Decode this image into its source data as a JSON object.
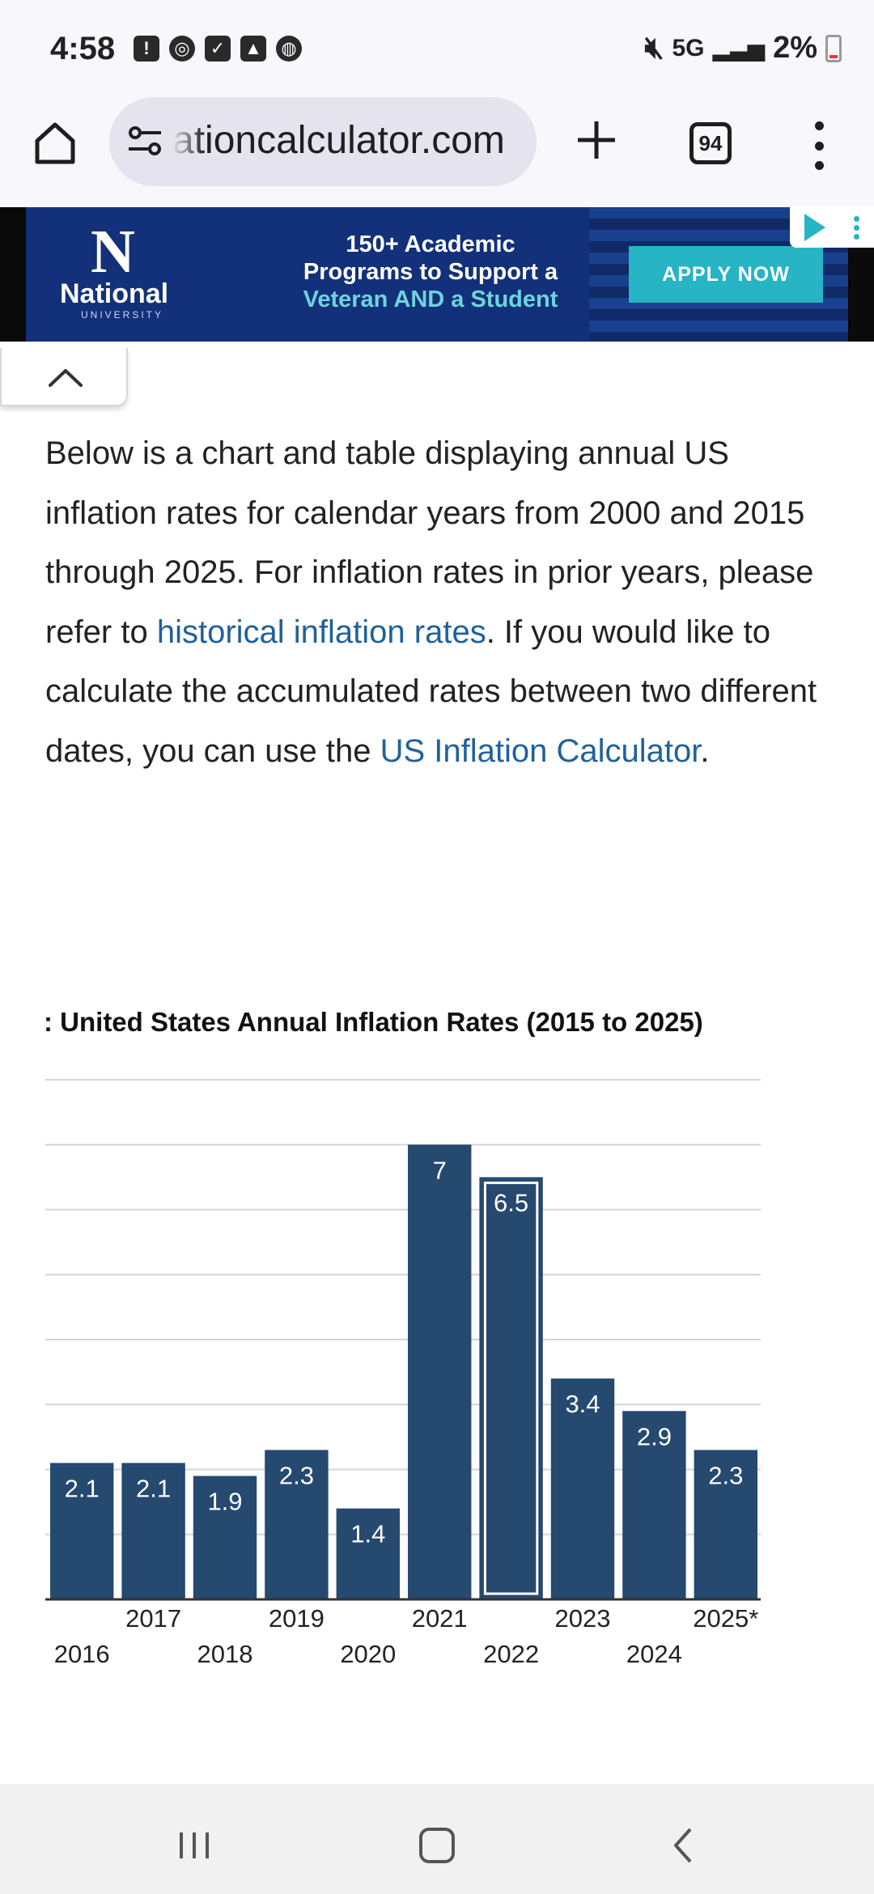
{
  "status_bar": {
    "time": "4:58",
    "network": "5G",
    "battery": "2%",
    "notification_icons": [
      "alert-icon",
      "chrome-icon",
      "check-icon",
      "gallery-icon",
      "ball-icon"
    ]
  },
  "browser": {
    "url": "ationcalculator.com",
    "tab_count": "94"
  },
  "ad": {
    "logo": "National",
    "logo_sub": "UNIVERSITY",
    "line1": "150+ Academic",
    "line2": "Programs to Support a",
    "line3": "Veteran AND a Student",
    "cta": "APPLY NOW"
  },
  "intro": {
    "part1": "Below is a chart and table displaying annual US inflation rates for calendar years from 2000 and 2015 through 2025. For inflation rates in prior years, please refer to ",
    "link1": "historical inflation rates",
    "part2": ". If you would like to calculate the accumulated rates between two different dates, you can use the ",
    "link2": "US Inflation Calculator",
    "part3": "."
  },
  "chart_data": {
    "type": "bar",
    "title": ": United States Annual Inflation Rates (2015 to 2025)",
    "categories": [
      "2016",
      "2017",
      "2018",
      "2019",
      "2020",
      "2021",
      "2022",
      "2023",
      "2024",
      "2025*"
    ],
    "values": [
      2.1,
      2.1,
      1.9,
      2.3,
      1.4,
      7,
      6.5,
      3.4,
      2.9,
      2.3
    ],
    "labels": [
      "2.1",
      "2.1",
      "1.9",
      "2.3",
      "1.4",
      "7",
      "6.5",
      "3.4",
      "2.9",
      "2.3"
    ],
    "ylim": [
      0,
      8
    ],
    "grid": true,
    "highlighted_category": "2022",
    "bar_color": "#26496f"
  }
}
